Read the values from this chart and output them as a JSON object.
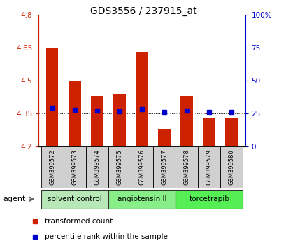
{
  "title": "GDS3556 / 237915_at",
  "samples": [
    "GSM399572",
    "GSM399573",
    "GSM399574",
    "GSM399575",
    "GSM399576",
    "GSM399577",
    "GSM399578",
    "GSM399579",
    "GSM399580"
  ],
  "bar_values": [
    4.65,
    4.5,
    4.43,
    4.44,
    4.63,
    4.28,
    4.43,
    4.33,
    4.33
  ],
  "bar_base": 4.2,
  "percentile_values": [
    4.375,
    4.365,
    4.362,
    4.36,
    4.368,
    4.355,
    4.362,
    4.355,
    4.355
  ],
  "ylim": [
    4.2,
    4.8
  ],
  "y_ticks": [
    4.2,
    4.35,
    4.5,
    4.65,
    4.8
  ],
  "y_tick_labels": [
    "4.2",
    "4.35",
    "4.5",
    "4.65",
    "4.8"
  ],
  "right_y_ticks": [
    0,
    25,
    50,
    75,
    100
  ],
  "right_y_labels": [
    "0",
    "25",
    "50",
    "75",
    "100%"
  ],
  "bar_color": "#cc2200",
  "percentile_color": "#0000cc",
  "grid_lines": [
    4.35,
    4.5,
    4.65
  ],
  "groups": [
    {
      "label": "solvent control",
      "start": 0,
      "end": 2,
      "color": "#b8e8b8"
    },
    {
      "label": "angiotensin II",
      "start": 3,
      "end": 5,
      "color": "#88ee88"
    },
    {
      "label": "torcetrapib",
      "start": 6,
      "end": 8,
      "color": "#55ee55"
    }
  ],
  "agent_label": "agent",
  "legend_bar_label": "transformed count",
  "legend_pct_label": "percentile rank within the sample",
  "tick_color_left": "#cc2200",
  "tick_color_right": "#0000cc",
  "sample_box_color": "#d0d0d0"
}
